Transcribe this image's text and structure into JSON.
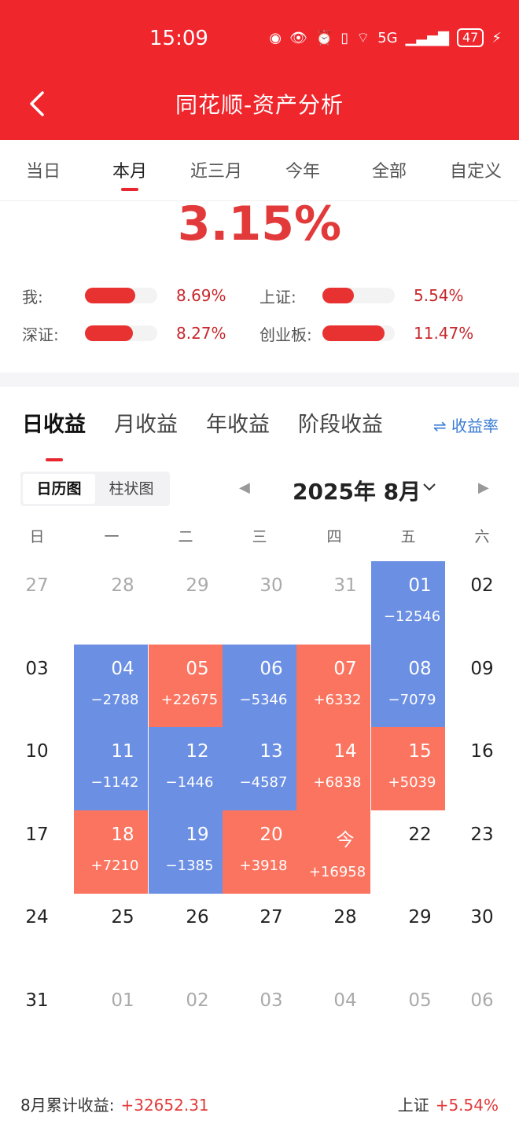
{
  "status": {
    "time": "15:09",
    "battery": "47",
    "network": "5G"
  },
  "header": {
    "title": "同花顺-资产分析"
  },
  "period_tabs": [
    "当日",
    "本月",
    "近三月",
    "今年",
    "全部",
    "自定义"
  ],
  "summary": {
    "month_return": "3.15%"
  },
  "comparisons": [
    {
      "label": "我:",
      "value": "8.69%",
      "fill": 0.7
    },
    {
      "label": "上证:",
      "value": "5.54%",
      "fill": 0.44
    },
    {
      "label": "深证:",
      "value": "8.27%",
      "fill": 0.66
    },
    {
      "label": "创业板:",
      "value": "11.47%",
      "fill": 0.86
    }
  ],
  "earn_tabs": [
    "日收益",
    "月收益",
    "年收益",
    "阶段收益"
  ],
  "rate_link": "⇌ 收益率",
  "view_toggle": [
    "日历图",
    "柱状图"
  ],
  "month": {
    "label": "2025年 8月"
  },
  "weekdays": [
    "日",
    "一",
    "二",
    "三",
    "四",
    "五",
    "六"
  ],
  "calendar": [
    [
      {
        "d": "27",
        "t": "other"
      },
      {
        "d": "28",
        "t": "other"
      },
      {
        "d": "29",
        "t": "other"
      },
      {
        "d": "30",
        "t": "other"
      },
      {
        "d": "31",
        "t": "other"
      },
      {
        "d": "01",
        "t": "neg",
        "v": "−12546"
      },
      {
        "d": "02",
        "t": "plain"
      }
    ],
    [
      {
        "d": "03",
        "t": "plain"
      },
      {
        "d": "04",
        "t": "neg",
        "v": "−2788"
      },
      {
        "d": "05",
        "t": "pos",
        "v": "+22675"
      },
      {
        "d": "06",
        "t": "neg",
        "v": "−5346"
      },
      {
        "d": "07",
        "t": "pos",
        "v": "+6332"
      },
      {
        "d": "08",
        "t": "neg",
        "v": "−7079"
      },
      {
        "d": "09",
        "t": "plain"
      }
    ],
    [
      {
        "d": "10",
        "t": "plain"
      },
      {
        "d": "11",
        "t": "neg",
        "v": "−1142"
      },
      {
        "d": "12",
        "t": "neg",
        "v": "−1446"
      },
      {
        "d": "13",
        "t": "neg",
        "v": "−4587"
      },
      {
        "d": "14",
        "t": "pos",
        "v": "+6838"
      },
      {
        "d": "15",
        "t": "pos",
        "v": "+5039"
      },
      {
        "d": "16",
        "t": "plain"
      }
    ],
    [
      {
        "d": "17",
        "t": "plain"
      },
      {
        "d": "18",
        "t": "pos",
        "v": "+7210"
      },
      {
        "d": "19",
        "t": "neg",
        "v": "−1385"
      },
      {
        "d": "20",
        "t": "pos",
        "v": "+3918"
      },
      {
        "d": "今",
        "t": "pos",
        "v": "+16958"
      },
      {
        "d": "22",
        "t": "plain"
      },
      {
        "d": "23",
        "t": "plain"
      }
    ],
    [
      {
        "d": "24",
        "t": "plain"
      },
      {
        "d": "25",
        "t": "plain"
      },
      {
        "d": "26",
        "t": "plain"
      },
      {
        "d": "27",
        "t": "plain"
      },
      {
        "d": "28",
        "t": "plain"
      },
      {
        "d": "29",
        "t": "plain"
      },
      {
        "d": "30",
        "t": "plain"
      }
    ],
    [
      {
        "d": "31",
        "t": "plain"
      },
      {
        "d": "01",
        "t": "other"
      },
      {
        "d": "02",
        "t": "other"
      },
      {
        "d": "03",
        "t": "other"
      },
      {
        "d": "04",
        "t": "other"
      },
      {
        "d": "05",
        "t": "other"
      },
      {
        "d": "06",
        "t": "other"
      }
    ]
  ],
  "footer": {
    "label": "8月累计收益:",
    "value": "+32652.31",
    "index_label": "上证",
    "index_value": "+5.54%"
  },
  "colors": {
    "brand_red": "#f0262d",
    "gain": "#fb7460",
    "loss": "#6b8fe3"
  }
}
